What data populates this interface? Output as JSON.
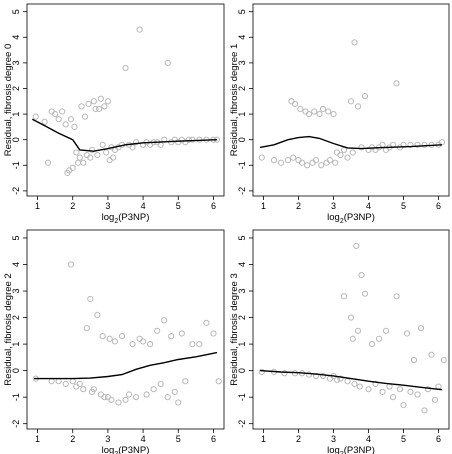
{
  "chart_data": [
    {
      "type": "scatter",
      "xlabel": "log",
      "xlabel_sub": "2",
      "xlabel_tail": "(P3NP)",
      "ylabel": "Residual, fibrosis degree 0",
      "xlim": [
        0.7,
        6.3
      ],
      "ylim": [
        -2.2,
        5.3
      ],
      "xticks": [
        1,
        2,
        3,
        4,
        5,
        6
      ],
      "yticks": [
        -2,
        -1,
        0,
        1,
        2,
        3,
        4,
        5
      ],
      "grid": false,
      "point_color": "#b8b8b8",
      "line_color": "#000000",
      "points": [
        [
          0.95,
          0.9
        ],
        [
          1.2,
          0.7
        ],
        [
          1.3,
          -0.9
        ],
        [
          1.4,
          1.1
        ],
        [
          1.5,
          1.0
        ],
        [
          1.6,
          0.8
        ],
        [
          1.7,
          1.1
        ],
        [
          1.8,
          0.6
        ],
        [
          1.85,
          -1.3
        ],
        [
          1.9,
          -1.2
        ],
        [
          2.0,
          -1.1
        ],
        [
          1.95,
          0.8
        ],
        [
          2.05,
          0.5
        ],
        [
          2.1,
          -0.5
        ],
        [
          2.15,
          -0.9
        ],
        [
          2.2,
          -0.7
        ],
        [
          2.25,
          1.3
        ],
        [
          2.3,
          -0.9
        ],
        [
          2.35,
          0.9
        ],
        [
          2.4,
          -0.6
        ],
        [
          2.45,
          1.4
        ],
        [
          2.5,
          -0.7
        ],
        [
          2.55,
          -0.4
        ],
        [
          2.6,
          1.5
        ],
        [
          2.65,
          1.2
        ],
        [
          2.7,
          -0.6
        ],
        [
          2.75,
          1.2
        ],
        [
          2.8,
          1.6
        ],
        [
          2.85,
          -0.2
        ],
        [
          2.9,
          1.3
        ],
        [
          2.95,
          -0.5
        ],
        [
          3.0,
          1.5
        ],
        [
          3.05,
          -0.8
        ],
        [
          3.1,
          -0.3
        ],
        [
          3.15,
          -0.7
        ],
        [
          3.2,
          -0.4
        ],
        [
          3.3,
          -0.3
        ],
        [
          3.4,
          -0.2
        ],
        [
          3.5,
          2.8
        ],
        [
          3.6,
          -0.2
        ],
        [
          3.7,
          -0.3
        ],
        [
          3.8,
          -0.1
        ],
        [
          3.9,
          4.3
        ],
        [
          4.0,
          -0.2
        ],
        [
          4.1,
          -0.1
        ],
        [
          4.2,
          -0.2
        ],
        [
          4.3,
          -0.1
        ],
        [
          4.4,
          -0.1
        ],
        [
          4.5,
          -0.2
        ],
        [
          4.6,
          0.0
        ],
        [
          4.7,
          3.0
        ],
        [
          4.8,
          -0.1
        ],
        [
          4.9,
          0.0
        ],
        [
          5.0,
          -0.1
        ],
        [
          5.1,
          0.0
        ],
        [
          5.2,
          -0.1
        ],
        [
          5.3,
          0.0
        ],
        [
          5.4,
          0.0
        ],
        [
          5.6,
          0.0
        ],
        [
          5.8,
          0.0
        ],
        [
          6.0,
          0.0
        ],
        [
          6.1,
          0.0
        ]
      ],
      "smooth_line": [
        [
          0.85,
          0.8
        ],
        [
          1.2,
          0.55
        ],
        [
          1.6,
          0.25
        ],
        [
          2.0,
          0.0
        ],
        [
          2.2,
          -0.4
        ],
        [
          2.6,
          -0.45
        ],
        [
          3.0,
          -0.35
        ],
        [
          3.5,
          -0.2
        ],
        [
          4.0,
          -0.12
        ],
        [
          5.0,
          -0.06
        ],
        [
          6.1,
          0.0
        ]
      ]
    },
    {
      "type": "scatter",
      "xlabel": "log",
      "xlabel_sub": "2",
      "xlabel_tail": "(P3NP)",
      "ylabel": "Residual, fibrosis degree 1",
      "xlim": [
        0.7,
        6.3
      ],
      "ylim": [
        -2.2,
        5.3
      ],
      "xticks": [
        1,
        2,
        3,
        4,
        5,
        6
      ],
      "yticks": [
        -2,
        -1,
        0,
        1,
        2,
        3,
        4,
        5
      ],
      "grid": false,
      "point_color": "#b8b8b8",
      "line_color": "#000000",
      "points": [
        [
          0.95,
          -0.7
        ],
        [
          1.3,
          -0.8
        ],
        [
          1.5,
          -0.9
        ],
        [
          1.7,
          -0.8
        ],
        [
          1.8,
          1.5
        ],
        [
          1.85,
          -0.7
        ],
        [
          1.9,
          1.4
        ],
        [
          2.0,
          -0.8
        ],
        [
          2.05,
          1.2
        ],
        [
          2.1,
          -0.9
        ],
        [
          2.2,
          1.1
        ],
        [
          2.25,
          -1.0
        ],
        [
          2.3,
          1.0
        ],
        [
          2.4,
          -0.9
        ],
        [
          2.45,
          1.1
        ],
        [
          2.5,
          -0.8
        ],
        [
          2.6,
          1.0
        ],
        [
          2.65,
          -1.0
        ],
        [
          2.7,
          1.2
        ],
        [
          2.8,
          -0.9
        ],
        [
          2.85,
          1.1
        ],
        [
          2.9,
          -0.8
        ],
        [
          3.0,
          1.0
        ],
        [
          3.05,
          -0.9
        ],
        [
          3.1,
          -0.5
        ],
        [
          3.2,
          -0.6
        ],
        [
          3.3,
          -0.4
        ],
        [
          3.4,
          -0.7
        ],
        [
          3.5,
          1.5
        ],
        [
          3.55,
          -0.5
        ],
        [
          3.6,
          3.8
        ],
        [
          3.7,
          1.3
        ],
        [
          3.8,
          -0.3
        ],
        [
          3.9,
          1.7
        ],
        [
          4.0,
          -0.4
        ],
        [
          4.1,
          -0.3
        ],
        [
          4.2,
          -0.4
        ],
        [
          4.3,
          -0.3
        ],
        [
          4.4,
          -0.2
        ],
        [
          4.5,
          -0.4
        ],
        [
          4.6,
          -0.3
        ],
        [
          4.7,
          -0.2
        ],
        [
          4.8,
          2.2
        ],
        [
          4.9,
          -0.3
        ],
        [
          5.0,
          -0.2
        ],
        [
          5.2,
          -0.2
        ],
        [
          5.4,
          -0.2
        ],
        [
          5.6,
          -0.2
        ],
        [
          5.8,
          -0.2
        ],
        [
          6.0,
          -0.2
        ],
        [
          6.1,
          -0.1
        ]
      ],
      "smooth_line": [
        [
          0.9,
          -0.3
        ],
        [
          1.3,
          -0.2
        ],
        [
          1.7,
          0.0
        ],
        [
          2.0,
          0.08
        ],
        [
          2.3,
          0.12
        ],
        [
          2.6,
          0.05
        ],
        [
          3.0,
          -0.15
        ],
        [
          3.4,
          -0.32
        ],
        [
          3.8,
          -0.35
        ],
        [
          4.5,
          -0.3
        ],
        [
          5.2,
          -0.27
        ],
        [
          6.1,
          -0.2
        ]
      ]
    },
    {
      "type": "scatter",
      "xlabel": "log",
      "xlabel_sub": "2",
      "xlabel_tail": "(P3NP)",
      "ylabel": "Residual, fibrosis degree 2",
      "xlim": [
        0.7,
        6.3
      ],
      "ylim": [
        -2.2,
        5.3
      ],
      "xticks": [
        1,
        2,
        3,
        4,
        5,
        6
      ],
      "yticks": [
        -2,
        -1,
        0,
        1,
        2,
        3,
        4,
        5
      ],
      "grid": false,
      "point_color": "#b8b8b8",
      "line_color": "#000000",
      "points": [
        [
          0.95,
          -0.3
        ],
        [
          1.4,
          -0.4
        ],
        [
          1.6,
          -0.4
        ],
        [
          1.8,
          -0.5
        ],
        [
          1.95,
          4.0
        ],
        [
          2.0,
          -0.4
        ],
        [
          2.1,
          -0.6
        ],
        [
          2.2,
          -0.5
        ],
        [
          2.3,
          -0.7
        ],
        [
          2.4,
          1.6
        ],
        [
          2.5,
          2.7
        ],
        [
          2.55,
          -0.8
        ],
        [
          2.6,
          -0.7
        ],
        [
          2.7,
          2.1
        ],
        [
          2.8,
          -0.9
        ],
        [
          2.85,
          1.3
        ],
        [
          2.9,
          -1.0
        ],
        [
          3.0,
          -1.0
        ],
        [
          3.05,
          1.2
        ],
        [
          3.1,
          -1.1
        ],
        [
          3.2,
          1.1
        ],
        [
          3.3,
          -1.2
        ],
        [
          3.4,
          1.3
        ],
        [
          3.5,
          -1.1
        ],
        [
          3.6,
          -0.9
        ],
        [
          3.7,
          1.0
        ],
        [
          3.8,
          -1.0
        ],
        [
          3.9,
          1.2
        ],
        [
          4.0,
          1.1
        ],
        [
          4.1,
          -0.9
        ],
        [
          4.2,
          1.0
        ],
        [
          4.3,
          -0.7
        ],
        [
          4.4,
          1.5
        ],
        [
          4.5,
          -0.5
        ],
        [
          4.6,
          1.9
        ],
        [
          4.7,
          -1.0
        ],
        [
          4.8,
          1.3
        ],
        [
          4.9,
          -0.8
        ],
        [
          5.0,
          -1.2
        ],
        [
          5.1,
          1.4
        ],
        [
          5.2,
          -0.4
        ],
        [
          5.4,
          1.0
        ],
        [
          5.6,
          1.0
        ],
        [
          5.8,
          1.8
        ],
        [
          6.0,
          1.4
        ],
        [
          6.15,
          -0.4
        ]
      ],
      "smooth_line": [
        [
          0.9,
          -0.3
        ],
        [
          1.5,
          -0.3
        ],
        [
          2.0,
          -0.3
        ],
        [
          2.5,
          -0.28
        ],
        [
          3.0,
          -0.22
        ],
        [
          3.4,
          -0.15
        ],
        [
          3.8,
          0.05
        ],
        [
          4.2,
          0.2
        ],
        [
          4.6,
          0.3
        ],
        [
          5.0,
          0.42
        ],
        [
          5.5,
          0.52
        ],
        [
          6.1,
          0.68
        ]
      ]
    },
    {
      "type": "scatter",
      "xlabel": "log",
      "xlabel_sub": "2",
      "xlabel_tail": "(P3NP)",
      "ylabel": "Residual, fibrosis degree 3",
      "xlim": [
        0.7,
        6.3
      ],
      "ylim": [
        -2.2,
        5.3
      ],
      "xticks": [
        1,
        2,
        3,
        4,
        5,
        6
      ],
      "yticks": [
        -2,
        -1,
        0,
        1,
        2,
        3,
        4,
        5
      ],
      "grid": false,
      "point_color": "#b8b8b8",
      "line_color": "#000000",
      "points": [
        [
          0.95,
          -0.05
        ],
        [
          1.3,
          -0.05
        ],
        [
          1.6,
          -0.1
        ],
        [
          1.9,
          -0.1
        ],
        [
          2.1,
          -0.1
        ],
        [
          2.3,
          -0.15
        ],
        [
          2.5,
          -0.2
        ],
        [
          2.7,
          -0.2
        ],
        [
          2.9,
          -0.3
        ],
        [
          3.0,
          -0.2
        ],
        [
          3.1,
          -0.35
        ],
        [
          3.2,
          -0.3
        ],
        [
          3.3,
          2.8
        ],
        [
          3.4,
          -0.4
        ],
        [
          3.5,
          2.0
        ],
        [
          3.55,
          1.2
        ],
        [
          3.6,
          -0.5
        ],
        [
          3.65,
          4.7
        ],
        [
          3.7,
          1.5
        ],
        [
          3.75,
          -0.6
        ],
        [
          3.8,
          3.6
        ],
        [
          3.9,
          2.9
        ],
        [
          4.0,
          -0.7
        ],
        [
          4.1,
          1.0
        ],
        [
          4.2,
          -0.5
        ],
        [
          4.3,
          1.2
        ],
        [
          4.4,
          -0.8
        ],
        [
          4.5,
          1.5
        ],
        [
          4.6,
          -0.6
        ],
        [
          4.7,
          -1.0
        ],
        [
          4.8,
          2.8
        ],
        [
          4.9,
          -0.7
        ],
        [
          5.0,
          -1.3
        ],
        [
          5.1,
          1.4
        ],
        [
          5.2,
          -0.8
        ],
        [
          5.3,
          0.4
        ],
        [
          5.4,
          -0.9
        ],
        [
          5.5,
          1.6
        ],
        [
          5.6,
          -1.5
        ],
        [
          5.7,
          -0.7
        ],
        [
          5.8,
          0.6
        ],
        [
          5.9,
          -1.1
        ],
        [
          6.0,
          -0.6
        ],
        [
          6.15,
          0.4
        ]
      ],
      "smooth_line": [
        [
          0.9,
          0.0
        ],
        [
          1.5,
          -0.05
        ],
        [
          2.0,
          -0.08
        ],
        [
          2.5,
          -0.13
        ],
        [
          3.0,
          -0.2
        ],
        [
          3.5,
          -0.3
        ],
        [
          4.0,
          -0.4
        ],
        [
          4.5,
          -0.48
        ],
        [
          5.0,
          -0.55
        ],
        [
          5.5,
          -0.63
        ],
        [
          6.1,
          -0.72
        ]
      ]
    }
  ]
}
